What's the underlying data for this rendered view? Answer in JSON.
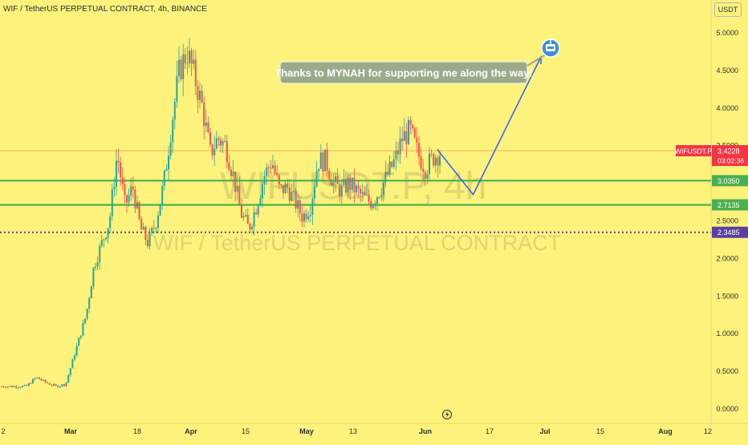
{
  "header": {
    "symbol_title": "WIF / TetherUS PERPETUAL CONTRACT, 4h, BINANCE",
    "currency": "USDT"
  },
  "watermark": {
    "ticker": "WIFUSDT.P, 4h",
    "name": "WIF / TetherUS PERPETUAL CONTRACT"
  },
  "annotation": {
    "text": "Thanks to MYNAH for supporting me along the way!"
  },
  "price_tag": {
    "symbol": "WIFUSDT.P",
    "price": "3.4228",
    "countdown": "03:02:36",
    "color": "#f23645"
  },
  "levels": [
    {
      "value": 3.035,
      "label": "3.0350",
      "style": "solid",
      "color": "#4caf50"
    },
    {
      "value": 2.7135,
      "label": "2.7135",
      "style": "solid",
      "color": "#4caf50"
    },
    {
      "value": 2.3485,
      "label": "2.3485",
      "style": "dotted",
      "color": "#5b3fa0"
    }
  ],
  "projection": {
    "color": "#2962ff",
    "points": [
      {
        "x": "Jun 4",
        "y": 3.45
      },
      {
        "x": "Jun 13",
        "y": 2.85
      },
      {
        "x": "Jun 30",
        "y": 4.68
      }
    ]
  },
  "chart_data": {
    "type": "candlestick",
    "title": "WIF / TetherUS PERPETUAL CONTRACT, 4h, BINANCE",
    "xlabel": "",
    "ylabel": "",
    "ylim": [
      0,
      5.2
    ],
    "y_ticks": [
      "0.0000",
      "0.5000",
      "1.0000",
      "1.5000",
      "2.0000",
      "2.5000",
      "3.0000",
      "3.5000",
      "4.0000",
      "4.5000",
      "5.0000"
    ],
    "x_ticks": [
      "2",
      "Mar",
      "18",
      "Apr",
      "15",
      "May",
      "13",
      "Jun",
      "17",
      "Jul",
      "15",
      "Aug",
      "12"
    ],
    "up_color": "#26a69a",
    "down_color": "#ef5350",
    "grid": false,
    "series": [
      {
        "name": "WIFUSDT.P",
        "points": [
          [
            "Feb 12",
            0.3
          ],
          [
            "Feb 16",
            0.42
          ],
          [
            "Feb 20",
            0.35
          ],
          [
            "Feb 24",
            0.3
          ],
          [
            "Feb 28",
            0.33
          ],
          [
            "Mar 1",
            0.55
          ],
          [
            "Mar 3",
            0.9
          ],
          [
            "Mar 5",
            1.25
          ],
          [
            "Mar 7",
            1.9
          ],
          [
            "Mar 9",
            2.2
          ],
          [
            "Mar 11",
            2.5
          ],
          [
            "Mar 13",
            3.4
          ],
          [
            "Mar 15",
            2.7
          ],
          [
            "Mar 17",
            2.95
          ],
          [
            "Mar 19",
            2.4
          ],
          [
            "Mar 21",
            2.2
          ],
          [
            "Mar 23",
            2.5
          ],
          [
            "Mar 25",
            3.0
          ],
          [
            "Mar 27",
            3.8
          ],
          [
            "Mar 29",
            4.5
          ],
          [
            "Mar 31",
            4.75
          ],
          [
            "Apr 2",
            4.4
          ],
          [
            "Apr 4",
            4.0
          ],
          [
            "Apr 6",
            3.4
          ],
          [
            "Apr 8",
            3.6
          ],
          [
            "Apr 10",
            3.5
          ],
          [
            "Apr 12",
            3.1
          ],
          [
            "Apr 14",
            2.6
          ],
          [
            "Apr 16",
            2.4
          ],
          [
            "Apr 18",
            2.7
          ],
          [
            "Apr 20",
            3.1
          ],
          [
            "Apr 22",
            3.3
          ],
          [
            "Apr 24",
            2.9
          ],
          [
            "Apr 26",
            2.95
          ],
          [
            "Apr 28",
            2.75
          ],
          [
            "Apr 30",
            2.55
          ],
          [
            "May 2",
            2.7
          ],
          [
            "May 4",
            3.3
          ],
          [
            "May 6",
            3.3
          ],
          [
            "May 8",
            3.0
          ],
          [
            "May 10",
            2.9
          ],
          [
            "May 12",
            3.0
          ],
          [
            "May 14",
            2.9
          ],
          [
            "May 16",
            2.8
          ],
          [
            "May 18",
            2.75
          ],
          [
            "May 20",
            2.9
          ],
          [
            "May 22",
            3.1
          ],
          [
            "May 24",
            3.3
          ],
          [
            "May 26",
            3.6
          ],
          [
            "May 28",
            3.7
          ],
          [
            "May 30",
            3.4
          ],
          [
            "Jun 1",
            3.2
          ],
          [
            "Jun 3",
            3.35
          ],
          [
            "Jun 5",
            3.42
          ]
        ]
      }
    ]
  }
}
